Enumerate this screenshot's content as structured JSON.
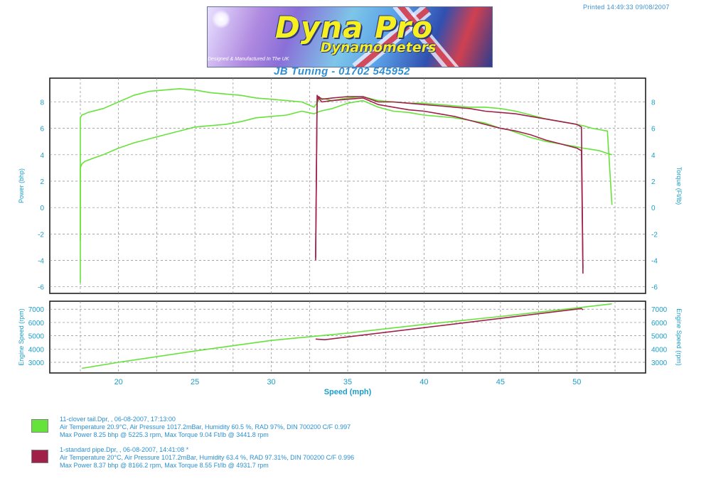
{
  "header": {
    "printed": "Printed 14:49:33  09/08/2007",
    "logo_main": "Dyna Pro",
    "logo_sub": "Dynamometers",
    "logo_tagline": "Designed & Manufactured In The UK",
    "subtitle": "JB Tuning - 01702 545952"
  },
  "legend": [
    {
      "color": "#66e33a",
      "title": "11-clover tail.Dpr,   ,   06-08-2007,   17:13:00",
      "line2": "Air Temperature 20.9°C,   Air Pressure 1017.2mBar,   Humidity 60.5 %,   RAD 97%,   DIN 700200  C/F 0.997",
      "line3": "Max Power 8.25 bhp @ 5225.3 rpm,   Max Torque 9.04 Ft/lb @ 3441.8 rpm"
    },
    {
      "color": "#a02048",
      "title": "1-standard pipe.Dpr,   ,   06-08-2007,   14:41:08  *",
      "line2": "Air Temperature 20°C,   Air Pressure 1017.2mBar,   Humidity 63.4 %,   RAD 97.31%,   DIN 700200  C/F 0.996",
      "line3": "Max Power 8.37 bhp @ 8166.2 rpm,   Max Torque 8.55 Ft/lb @ 4931.7 rpm"
    }
  ],
  "chart_data": [
    {
      "type": "line",
      "title": "",
      "xlabel": "",
      "ylabel": "Power (bhp)",
      "y2label": "Torque (Ft/lb)",
      "xlim": [
        15.5,
        54.5
      ],
      "ylim": [
        -6.5,
        9.8
      ],
      "y2lim": [
        -6.5,
        9.8
      ],
      "yticks": [
        -6,
        -4,
        -2,
        0,
        2,
        4,
        6,
        8
      ],
      "y2ticks": [
        -6,
        -4,
        -2,
        0,
        2,
        4,
        6,
        8
      ],
      "grid": true,
      "series": [
        {
          "name": "11-clover tail.Dpr",
          "color": "#66e33a",
          "x": [
            17.5,
            17.5,
            17.6,
            17.8,
            18.5,
            19.0,
            20.0,
            21.0,
            22.0,
            23.0,
            24.0,
            25.0,
            26.0,
            27.0,
            28.0,
            29.0,
            30.0,
            31.0,
            32.0,
            32.8,
            33.2,
            34.0,
            35.0,
            36.0,
            37.0,
            38.0,
            39.0,
            40.0,
            41.0,
            42.0,
            43.0,
            44.0,
            45.0,
            45.5,
            46.0,
            47.0,
            48.0,
            49.0,
            50.0,
            50.4,
            51.0,
            51.5,
            52.0,
            52.3
          ],
          "y": [
            -5.7,
            3.0,
            3.3,
            3.5,
            3.8,
            4.0,
            4.5,
            4.9,
            5.2,
            5.5,
            5.8,
            6.1,
            6.2,
            6.3,
            6.5,
            6.8,
            6.9,
            7.0,
            7.3,
            7.1,
            7.3,
            7.5,
            7.9,
            8.1,
            7.6,
            7.3,
            7.2,
            7.0,
            6.9,
            6.8,
            6.6,
            6.4,
            6.0,
            5.9,
            5.7,
            5.3,
            5.0,
            4.8,
            4.6,
            4.5,
            4.4,
            4.3,
            4.1,
            4.0
          ]
        },
        {
          "name": "11-clover tail.Dpr",
          "color": "#66e33a",
          "x": [
            17.5,
            17.5,
            17.6,
            17.8,
            18.0,
            19.0,
            20.0,
            21.0,
            22.0,
            23.0,
            24.0,
            25.0,
            26.0,
            27.0,
            28.0,
            29.0,
            30.0,
            31.0,
            32.0,
            32.8,
            33.2,
            34.0,
            35.0,
            36.0,
            37.0,
            38.0,
            39.0,
            40.0,
            41.0,
            42.0,
            43.0,
            44.0,
            45.0,
            46.0,
            47.0,
            48.0,
            49.0,
            50.0,
            50.4,
            51.0,
            51.5,
            52.0,
            52.3
          ],
          "y": [
            -2.5,
            6.8,
            7.0,
            7.1,
            7.2,
            7.5,
            8.0,
            8.5,
            8.8,
            8.9,
            9.0,
            8.9,
            8.7,
            8.6,
            8.5,
            8.3,
            8.2,
            8.1,
            8.0,
            7.6,
            8.3,
            8.1,
            8.3,
            8.4,
            8.1,
            8.0,
            7.9,
            7.9,
            7.8,
            7.7,
            7.6,
            7.6,
            7.5,
            7.3,
            7.0,
            6.7,
            6.5,
            6.3,
            6.2,
            6.0,
            5.9,
            5.8,
            0.2
          ]
        },
        {
          "name": "1-standard pipe.Dpr",
          "color": "#a02048",
          "x": [
            32.9,
            33.0,
            33.1,
            33.3,
            34.0,
            35.0,
            36.0,
            37.0,
            38.0,
            39.0,
            40.0,
            41.0,
            42.0,
            43.0,
            44.0,
            45.0,
            46.0,
            47.0,
            48.0,
            49.0,
            50.0,
            50.3,
            50.4
          ],
          "y": [
            -3.8,
            8.5,
            8.3,
            8.0,
            8.1,
            8.2,
            8.3,
            7.8,
            7.6,
            7.4,
            7.3,
            7.1,
            6.9,
            6.6,
            6.3,
            6.0,
            5.8,
            5.5,
            5.1,
            4.8,
            4.5,
            4.3,
            -5.0
          ]
        },
        {
          "name": "1-standard pipe.Dpr",
          "color": "#a02048",
          "x": [
            32.9,
            33.0,
            33.1,
            33.3,
            34.0,
            35.0,
            36.0,
            37.0,
            38.0,
            39.0,
            40.0,
            41.0,
            42.0,
            43.0,
            44.0,
            45.0,
            46.0,
            47.0,
            48.0,
            49.0,
            50.0,
            50.3,
            50.4
          ],
          "y": [
            -4.0,
            8.0,
            8.4,
            8.2,
            8.3,
            8.4,
            8.4,
            8.0,
            8.0,
            7.9,
            7.8,
            7.7,
            7.6,
            7.5,
            7.3,
            7.2,
            7.1,
            6.9,
            6.7,
            6.5,
            6.3,
            6.1,
            -4.6
          ]
        }
      ]
    },
    {
      "type": "line",
      "title": "",
      "xlabel": "Speed (mph)",
      "ylabel": "Engine Speed (rpm)",
      "y2label": "Engine Speed (rpm)",
      "xlim": [
        15.5,
        54.5
      ],
      "ylim": [
        2200,
        7600
      ],
      "y2lim": [
        2200,
        7600
      ],
      "xticks": [
        20,
        25,
        30,
        35,
        40,
        45,
        50
      ],
      "yticks": [
        3000,
        4000,
        5000,
        6000,
        7000
      ],
      "y2ticks": [
        3000,
        4000,
        5000,
        6000,
        7000
      ],
      "grid": true,
      "series": [
        {
          "name": "11-clover tail.Dpr",
          "color": "#66e33a",
          "x": [
            17.6,
            20,
            25,
            30,
            35,
            40,
            45,
            50,
            52.3
          ],
          "y": [
            2550,
            3000,
            3850,
            4650,
            5200,
            5850,
            6450,
            7100,
            7400
          ]
        },
        {
          "name": "1-standard pipe.Dpr",
          "color": "#a02048",
          "x": [
            32.9,
            33.5,
            50.3,
            50.4
          ],
          "y": [
            4750,
            4700,
            7050,
            6950
          ]
        }
      ]
    }
  ]
}
